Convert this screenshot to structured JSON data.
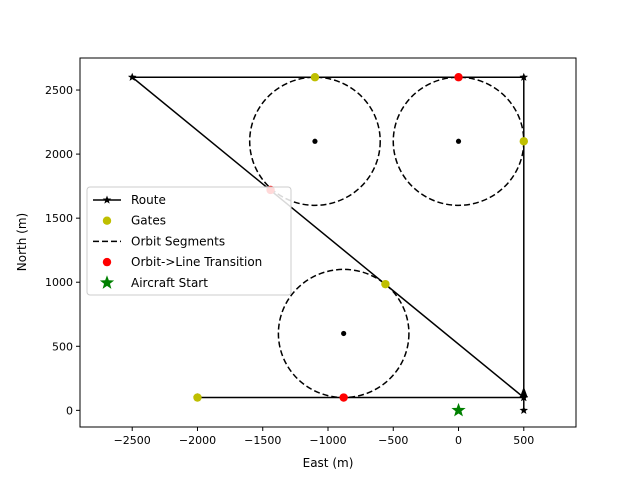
{
  "chart_data": {
    "type": "scatter",
    "title": "",
    "xlabel": "East (m)",
    "ylabel": "North (m)",
    "xlim": [
      -2900,
      900
    ],
    "ylim": [
      -130,
      2750
    ],
    "grid": false,
    "legend_placement": "center-left",
    "x_ticks": [
      -2500,
      -2000,
      -1500,
      -1000,
      -500,
      0,
      500
    ],
    "x_tick_labels": [
      "−2500",
      "−2000",
      "−1500",
      "−1000",
      "−500",
      "0",
      "500"
    ],
    "y_ticks": [
      0,
      500,
      1000,
      1500,
      2000,
      2500
    ],
    "y_tick_labels": [
      "0",
      "500",
      "1000",
      "1500",
      "2000",
      "2500"
    ],
    "legend": [
      {
        "label": "Route",
        "kind": "line-star",
        "color": "#000000"
      },
      {
        "label": "Gates",
        "kind": "dot",
        "color": "#bfbf00"
      },
      {
        "label": "Orbit Segments",
        "kind": "dashed",
        "color": "#000000"
      },
      {
        "label": "Orbit->Line Transition",
        "kind": "dot",
        "color": "#ff0000"
      },
      {
        "label": "Aircraft Start",
        "kind": "star",
        "color": "#008000"
      }
    ],
    "series": [
      {
        "name": "Route",
        "style": "solid-line-star-markers",
        "color": "#000000",
        "points": [
          [
            500,
            0
          ],
          [
            500,
            100
          ],
          [
            500,
            2600
          ],
          [
            -2500,
            2600
          ],
          [
            500,
            100
          ],
          [
            -2000,
            100
          ]
        ]
      },
      {
        "name": "Gates",
        "style": "markers",
        "color": "#bfbf00",
        "points": [
          [
            -1100,
            2600
          ],
          [
            500,
            2100
          ],
          [
            -560,
            985
          ],
          [
            -2000,
            100
          ]
        ]
      },
      {
        "name": "Orbit Segments",
        "style": "dashed-circles",
        "color": "#000000",
        "circles": [
          {
            "cx": -1100,
            "cy": 2100,
            "r": 500
          },
          {
            "cx": 0,
            "cy": 2100,
            "r": 500
          },
          {
            "cx": -880,
            "cy": 600,
            "r": 500
          }
        ]
      },
      {
        "name": "Orbit->Line Transition",
        "style": "markers",
        "color": "#ff0000",
        "points": [
          [
            0,
            2600
          ],
          [
            -1440,
            1720
          ],
          [
            -880,
            100
          ]
        ]
      },
      {
        "name": "Aircraft Start",
        "style": "star-marker",
        "color": "#008000",
        "points": [
          [
            0,
            0
          ]
        ]
      }
    ],
    "orbit_centers": [
      [
        -1100,
        2100
      ],
      [
        0,
        2100
      ],
      [
        -880,
        600
      ]
    ],
    "aircraft_arrow": {
      "x": 500,
      "y": 100,
      "direction": "north",
      "color": "#000000"
    }
  }
}
